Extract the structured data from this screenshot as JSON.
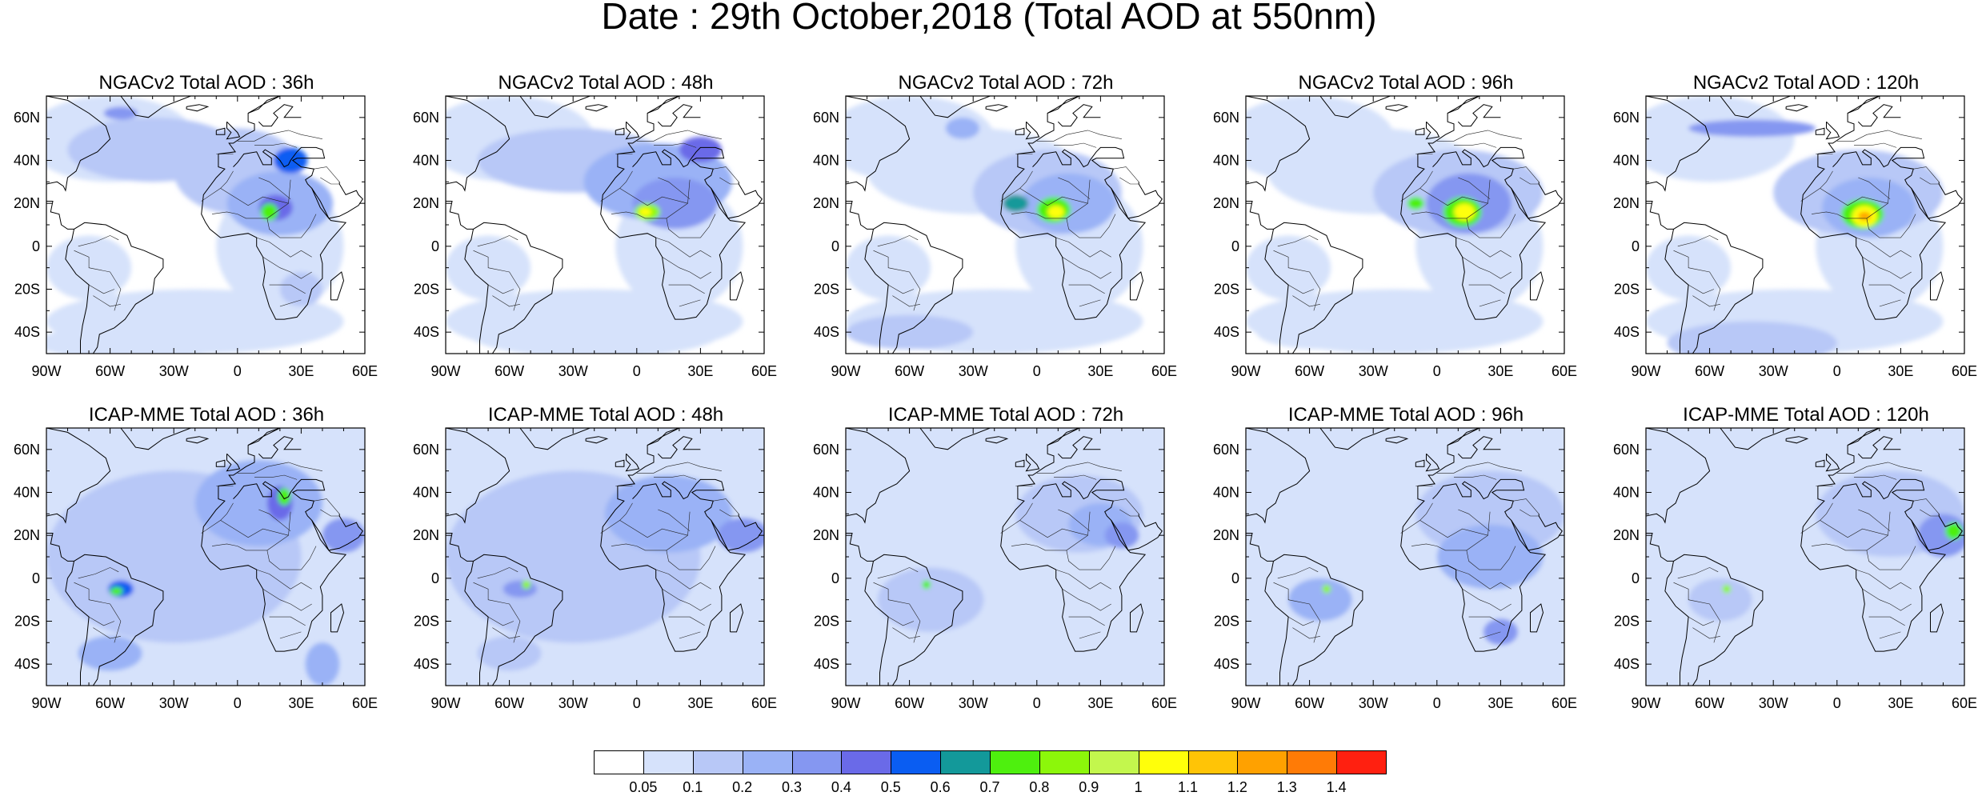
{
  "title": "Date : 29th October,2018 (Total AOD at 550nm)",
  "panels": [
    {
      "id": "ngac-36",
      "title": "NGACv2 Total AOD : 36h"
    },
    {
      "id": "ngac-48",
      "title": "NGACv2 Total AOD : 48h"
    },
    {
      "id": "ngac-72",
      "title": "NGACv2 Total AOD : 72h"
    },
    {
      "id": "ngac-96",
      "title": "NGACv2 Total AOD : 96h"
    },
    {
      "id": "ngac-120",
      "title": "NGACv2 Total AOD : 120h"
    },
    {
      "id": "icap-36",
      "title": "ICAP-MME Total AOD : 36h"
    },
    {
      "id": "icap-48",
      "title": "ICAP-MME Total AOD : 48h"
    },
    {
      "id": "icap-72",
      "title": "ICAP-MME Total AOD : 72h"
    },
    {
      "id": "icap-96",
      "title": "ICAP-MME Total AOD : 96h"
    },
    {
      "id": "icap-120",
      "title": "ICAP-MME Total AOD : 120h"
    }
  ],
  "axes": {
    "lon_ticks": [
      "90W",
      "60W",
      "30W",
      "0",
      "30E",
      "60E"
    ],
    "lat_ticks": [
      "60N",
      "40N",
      "20N",
      "0",
      "20S",
      "40S"
    ]
  },
  "colorbar": {
    "labels": [
      "0.05",
      "0.1",
      "0.2",
      "0.3",
      "0.4",
      "0.5",
      "0.6",
      "0.7",
      "0.8",
      "0.9",
      "1",
      "1.1",
      "1.2",
      "1.3",
      "1.4"
    ],
    "colors": [
      "#ffffff",
      "#d6e2fb",
      "#b8c8f7",
      "#9ab2f6",
      "#8597f1",
      "#6a6ae8",
      "#0a5df2",
      "#13999a",
      "#4ef00e",
      "#8cf70a",
      "#c3f74d",
      "#ffff0a",
      "#ffc406",
      "#ffa100",
      "#ff7b06",
      "#ff2010"
    ]
  }
}
